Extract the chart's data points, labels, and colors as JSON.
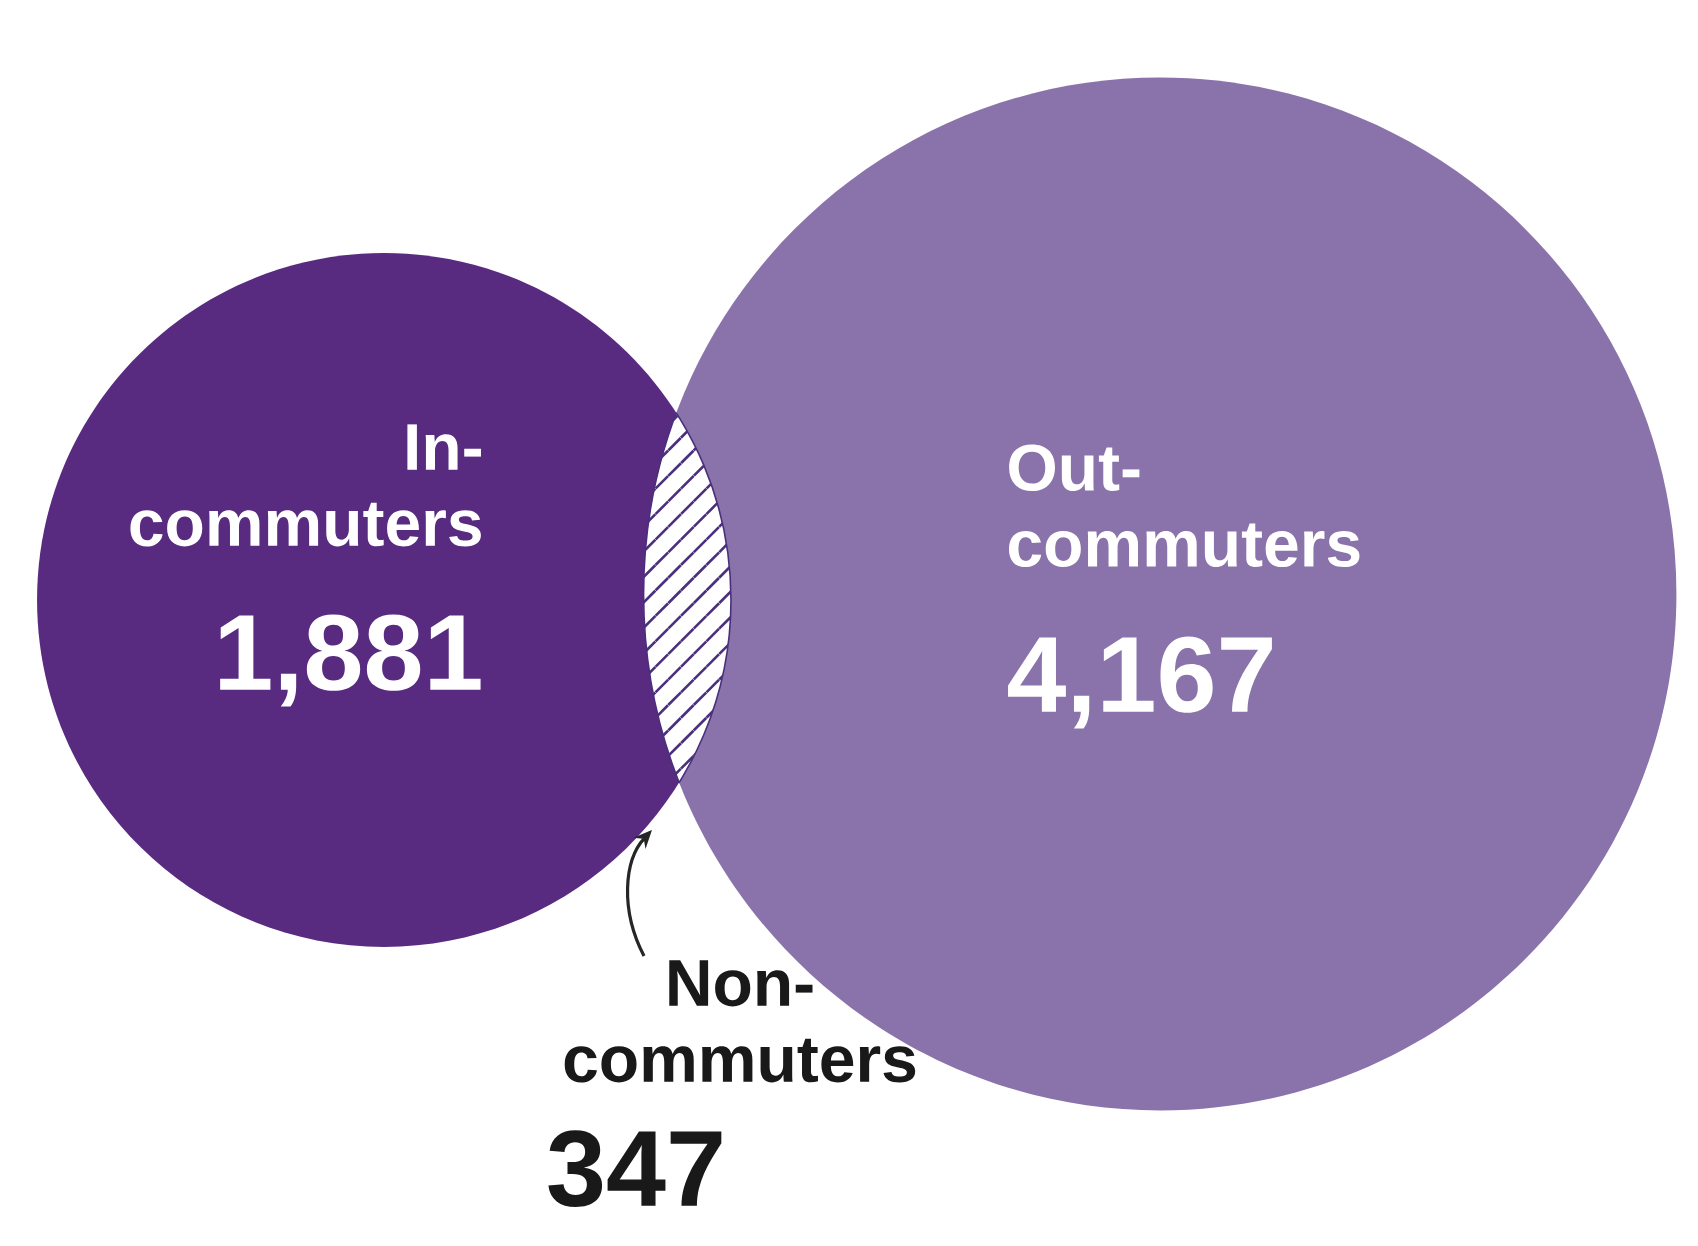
{
  "chart_data": {
    "type": "other",
    "categories": [
      "In-commuters",
      "Out-commuters",
      "Non-commuters"
    ],
    "values": [
      1881,
      4167,
      347
    ],
    "value_labels": [
      "1,881",
      "4,167",
      "347"
    ],
    "colors": [
      "#582a80",
      "#8a73aa",
      "#4a2f7c"
    ]
  }
}
